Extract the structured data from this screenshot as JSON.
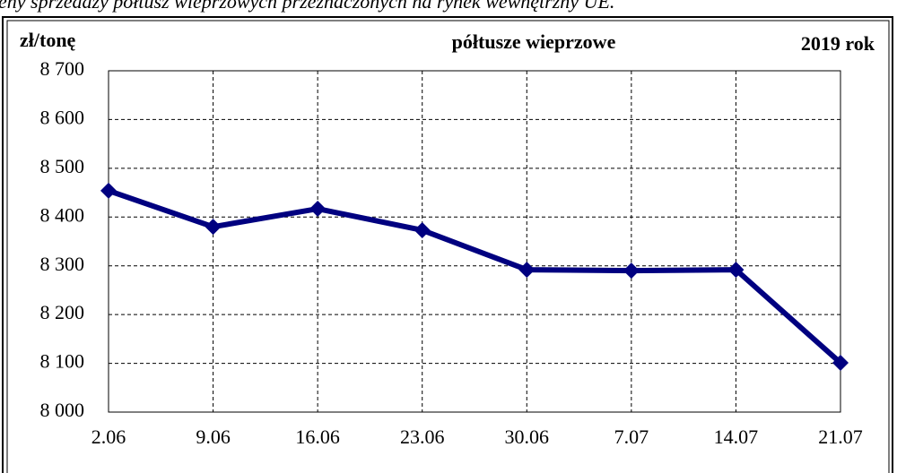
{
  "chart_data": {
    "type": "line",
    "header": "eny sprzedaży półtusz wieprzowych przeznaczonych na rynek wewnętrzny UE.",
    "title": "półtusze wieprzowe",
    "y_label": "zł/tonę",
    "year_label": "2019 rok",
    "categories": [
      "2.06",
      "9.06",
      "16.06",
      "23.06",
      "30.06",
      "7.07",
      "14.07",
      "21.07"
    ],
    "values": [
      8454,
      8380,
      8417,
      8373,
      8292,
      8290,
      8292,
      8101
    ],
    "color": "#000080",
    "ylim": [
      8000,
      8700
    ],
    "yticks": [
      {
        "value": 8000,
        "label": "8 000"
      },
      {
        "value": 8100,
        "label": "8 100"
      },
      {
        "value": 8200,
        "label": "8 200"
      },
      {
        "value": 8300,
        "label": "8 300"
      },
      {
        "value": 8400,
        "label": "8 400"
      },
      {
        "value": 8500,
        "label": "8 500"
      },
      {
        "value": 8600,
        "label": "8 600"
      },
      {
        "value": 8700,
        "label": "8 700"
      }
    ],
    "grid": true
  }
}
